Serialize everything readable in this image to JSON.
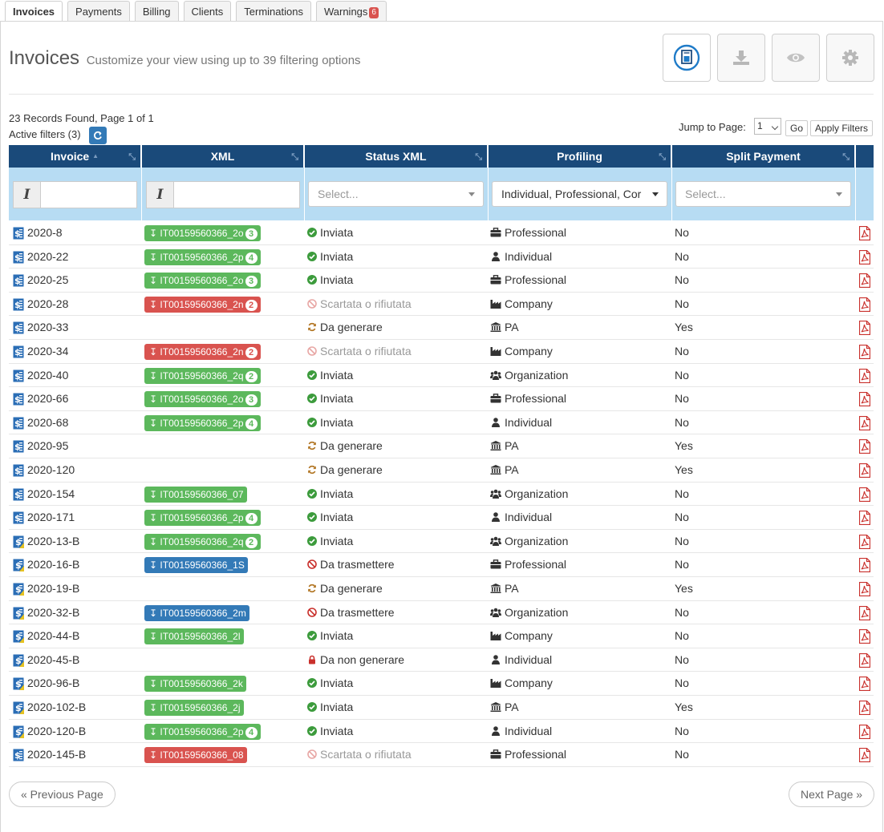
{
  "tabs": [
    {
      "label": "Invoices",
      "active": true
    },
    {
      "label": "Payments"
    },
    {
      "label": "Billing"
    },
    {
      "label": "Clients"
    },
    {
      "label": "Terminations"
    },
    {
      "label": "Warnings",
      "badge": "6"
    }
  ],
  "header": {
    "title": "Invoices",
    "subtitle": "Customize your view using up to 39 filtering options",
    "toolbar": [
      "new-invoice-icon",
      "download-icon",
      "eye-icon",
      "gear-icon"
    ]
  },
  "records_found": "23 Records Found, Page 1 of 1",
  "active_filters": "Active filters (3)",
  "jump": {
    "label": "Jump to Page:",
    "value": "1",
    "go": "Go",
    "apply": "Apply Filters"
  },
  "columns": {
    "invoice": "Invoice",
    "xml": "XML",
    "status": "Status XML",
    "profiling": "Profiling",
    "split": "Split Payment"
  },
  "filters": {
    "status_placeholder": "Select...",
    "profiling_value": "Individual, Professional, Cor",
    "split_placeholder": "Select..."
  },
  "rows": [
    {
      "invoice": "2020-8",
      "type": "a",
      "xml": "IT00159560366_2o",
      "xml_color": "green",
      "count": "3",
      "status": "Inviata",
      "status_kind": "ok",
      "profile": "Professional",
      "split": "No"
    },
    {
      "invoice": "2020-22",
      "type": "a",
      "xml": "IT00159560366_2p",
      "xml_color": "green",
      "count": "4",
      "status": "Inviata",
      "status_kind": "ok",
      "profile": "Individual",
      "split": "No"
    },
    {
      "invoice": "2020-25",
      "type": "a",
      "xml": "IT00159560366_2o",
      "xml_color": "green",
      "count": "3",
      "status": "Inviata",
      "status_kind": "ok",
      "profile": "Professional",
      "split": "No"
    },
    {
      "invoice": "2020-28",
      "type": "a",
      "xml": "IT00159560366_2n",
      "xml_color": "red",
      "count": "2",
      "status": "Scartata o rifiutata",
      "status_kind": "rejected",
      "profile": "Company",
      "split": "No"
    },
    {
      "invoice": "2020-33",
      "type": "a",
      "xml": "",
      "xml_color": "",
      "count": "",
      "status": "Da generare",
      "status_kind": "generate",
      "profile": "PA",
      "split": "Yes"
    },
    {
      "invoice": "2020-34",
      "type": "a",
      "xml": "IT00159560366_2n",
      "xml_color": "red",
      "count": "2",
      "status": "Scartata o rifiutata",
      "status_kind": "rejected",
      "profile": "Company",
      "split": "No"
    },
    {
      "invoice": "2020-40",
      "type": "a",
      "xml": "IT00159560366_2q",
      "xml_color": "green",
      "count": "2",
      "status": "Inviata",
      "status_kind": "ok",
      "profile": "Organization",
      "split": "No"
    },
    {
      "invoice": "2020-66",
      "type": "a",
      "xml": "IT00159560366_2o",
      "xml_color": "green",
      "count": "3",
      "status": "Inviata",
      "status_kind": "ok",
      "profile": "Professional",
      "split": "No"
    },
    {
      "invoice": "2020-68",
      "type": "a",
      "xml": "IT00159560366_2p",
      "xml_color": "green",
      "count": "4",
      "status": "Inviata",
      "status_kind": "ok",
      "profile": "Individual",
      "split": "No"
    },
    {
      "invoice": "2020-95",
      "type": "a",
      "xml": "",
      "xml_color": "",
      "count": "",
      "status": "Da generare",
      "status_kind": "generate",
      "profile": "PA",
      "split": "Yes"
    },
    {
      "invoice": "2020-120",
      "type": "a",
      "xml": "",
      "xml_color": "",
      "count": "",
      "status": "Da generare",
      "status_kind": "generate",
      "profile": "PA",
      "split": "Yes"
    },
    {
      "invoice": "2020-154",
      "type": "a",
      "xml": "IT00159560366_07",
      "xml_color": "green",
      "count": "",
      "status": "Inviata",
      "status_kind": "ok",
      "profile": "Organization",
      "split": "No"
    },
    {
      "invoice": "2020-171",
      "type": "a",
      "xml": "IT00159560366_2p",
      "xml_color": "green",
      "count": "4",
      "status": "Inviata",
      "status_kind": "ok",
      "profile": "Individual",
      "split": "No"
    },
    {
      "invoice": "2020-13-B",
      "type": "b",
      "xml": "IT00159560366_2q",
      "xml_color": "green",
      "count": "2",
      "status": "Inviata",
      "status_kind": "ok",
      "profile": "Organization",
      "split": "No"
    },
    {
      "invoice": "2020-16-B",
      "type": "b",
      "xml": "IT00159560366_1S",
      "xml_color": "blue",
      "count": "",
      "status": "Da trasmettere",
      "status_kind": "transmit",
      "profile": "Professional",
      "split": "No"
    },
    {
      "invoice": "2020-19-B",
      "type": "b",
      "xml": "",
      "xml_color": "",
      "count": "",
      "status": "Da generare",
      "status_kind": "generate",
      "profile": "PA",
      "split": "Yes"
    },
    {
      "invoice": "2020-32-B",
      "type": "b",
      "xml": "IT00159560366_2m",
      "xml_color": "blue",
      "count": "",
      "status": "Da trasmettere",
      "status_kind": "transmit",
      "profile": "Organization",
      "split": "No"
    },
    {
      "invoice": "2020-44-B",
      "type": "b",
      "xml": "IT00159560366_2l",
      "xml_color": "green",
      "count": "",
      "status": "Inviata",
      "status_kind": "ok",
      "profile": "Company",
      "split": "No"
    },
    {
      "invoice": "2020-45-B",
      "type": "b",
      "xml": "",
      "xml_color": "",
      "count": "",
      "status": "Da non generare",
      "status_kind": "locked",
      "profile": "Individual",
      "split": "No"
    },
    {
      "invoice": "2020-96-B",
      "type": "b",
      "xml": "IT00159560366_2k",
      "xml_color": "green",
      "count": "",
      "status": "Inviata",
      "status_kind": "ok",
      "profile": "Company",
      "split": "No"
    },
    {
      "invoice": "2020-102-B",
      "type": "b",
      "xml": "IT00159560366_2j",
      "xml_color": "green",
      "count": "",
      "status": "Inviata",
      "status_kind": "ok",
      "profile": "PA",
      "split": "Yes"
    },
    {
      "invoice": "2020-120-B",
      "type": "b",
      "xml": "IT00159560366_2p",
      "xml_color": "green",
      "count": "4",
      "status": "Inviata",
      "status_kind": "ok",
      "profile": "Individual",
      "split": "No"
    },
    {
      "invoice": "2020-145-B",
      "type": "a",
      "xml": "IT00159560366_08",
      "xml_color": "red",
      "count": "",
      "status": "Scartata o rifiutata",
      "status_kind": "rejected",
      "profile": "Professional",
      "split": "No"
    }
  ],
  "pager": {
    "prev": "« Previous Page",
    "next": "Next Page »"
  }
}
